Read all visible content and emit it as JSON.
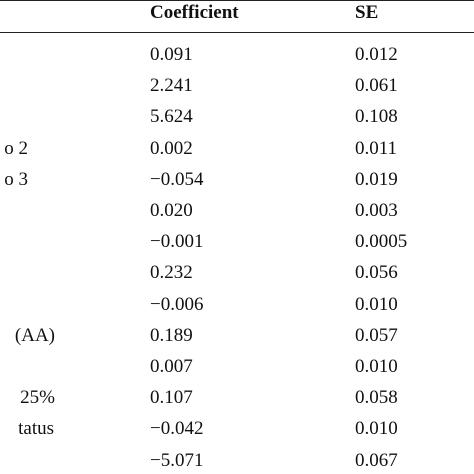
{
  "table": {
    "header": {
      "coefficient": "Coefficient",
      "se": "SE"
    },
    "rows": [
      {
        "coefficient": "0.091",
        "se": "0.012"
      },
      {
        "coefficient": "2.241",
        "se": "0.061"
      },
      {
        "coefficient": "5.624",
        "se": "0.108"
      },
      {
        "label": "o 2",
        "coefficient": "0.002",
        "se": "0.011"
      },
      {
        "label": "o 3",
        "coefficient": "−0.054",
        "se": "0.019"
      },
      {
        "coefficient": "0.020",
        "se": "0.003"
      },
      {
        "coefficient": "−0.001",
        "se": "0.0005"
      },
      {
        "coefficient": "0.232",
        "se": "0.056"
      },
      {
        "coefficient": "−0.006",
        "se": "0.010"
      },
      {
        "label": "(AA)",
        "coefficient": "0.189",
        "se": "0.057"
      },
      {
        "coefficient": "0.007",
        "se": "0.010"
      },
      {
        "label": "25%",
        "coefficient": "0.107",
        "se": "0.058"
      },
      {
        "label": "tatus",
        "coefficient": "−0.042",
        "se": "0.010"
      },
      {
        "coefficient": "−5.071",
        "se": "0.067"
      }
    ]
  }
}
